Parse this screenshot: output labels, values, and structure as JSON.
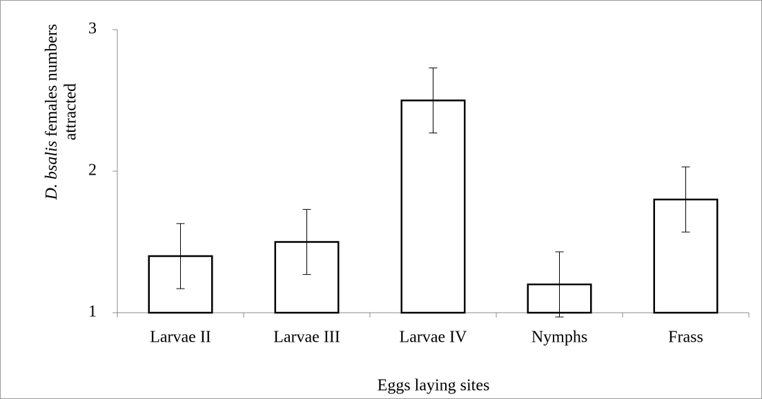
{
  "chart_data": {
    "type": "bar",
    "x_label": "Eggs laying sites",
    "y_label": {
      "italic": "D. bsalis",
      "text": "females numbers",
      "line2": "attracted"
    },
    "categories": [
      "Larvae II",
      "Larvae III",
      "Larvae IV",
      "Nymphs",
      "Frass"
    ],
    "values": [
      1.4,
      1.5,
      2.5,
      1.2,
      1.8
    ],
    "errors": [
      0.23,
      0.23,
      0.23,
      0.23,
      0.23
    ],
    "color": "#ffffff",
    "ylim": [
      1,
      3
    ],
    "yticks": [
      1,
      2,
      3
    ]
  }
}
